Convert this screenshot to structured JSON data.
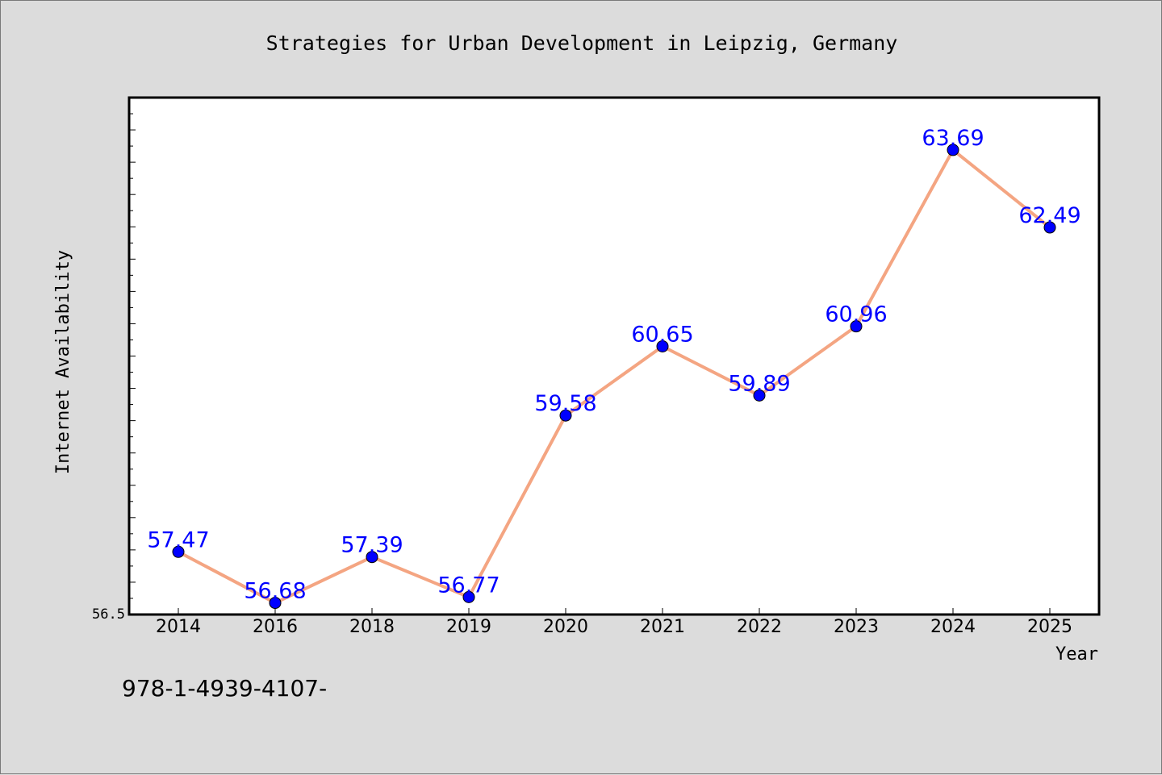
{
  "chart_data": {
    "type": "line",
    "title": "Strategies for Urban Development in Leipzig, Germany",
    "xlabel": "Year",
    "ylabel": "Internet Availability",
    "ytick_labels": [
      "56.5"
    ],
    "ylim": [
      56.5,
      64.5
    ],
    "grid": false,
    "legend": "none",
    "categories": [
      "2014",
      "2016",
      "2018",
      "2019",
      "2020",
      "2021",
      "2022",
      "2023",
      "2024",
      "2025"
    ],
    "series": [
      {
        "values": [
          57.47,
          56.68,
          57.39,
          56.77,
          59.58,
          60.65,
          59.89,
          60.96,
          63.69,
          62.49
        ],
        "data_labels": [
          "57.47",
          "56.68",
          "57.39",
          "56.77",
          "59.58",
          "60.65",
          "59.89",
          "60.96",
          "63.69",
          "62.49"
        ]
      }
    ],
    "colors": {
      "line": "#f4a582",
      "marker": "#0000ff",
      "label": "#0000ff",
      "background": "#dcdcdc",
      "plot_background": "#ffffff"
    }
  },
  "footnote": "978-1-4939-4107-"
}
